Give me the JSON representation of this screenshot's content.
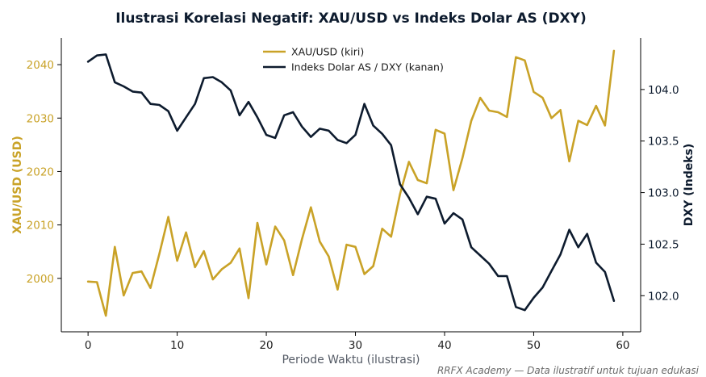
{
  "chart_data": {
    "type": "line",
    "title": "Ilustrasi Korelasi Negatif: XAU/USD vs Indeks Dolar AS (DXY)",
    "xlabel": "Periode Waktu (ilustrasi)",
    "ylabel_left": "XAU/USD (USD)",
    "ylabel_right": "DXY (Indeks)",
    "footer": "RRFX Academy — Data ilustratif untuk tujuan edukasi",
    "xlim": [
      -3,
      62
    ],
    "ylim_left": [
      1990,
      2045
    ],
    "ylim_right": [
      101.65,
      104.5
    ],
    "x_ticks": [
      0,
      10,
      20,
      30,
      40,
      50,
      60
    ],
    "y_ticks_left": [
      2000,
      2010,
      2020,
      2030,
      2040
    ],
    "y_ticks_right": [
      102.0,
      102.5,
      103.0,
      103.5,
      104.0
    ],
    "legend_position": "top-center",
    "grid": false,
    "x": [
      0,
      1,
      2,
      3,
      4,
      5,
      6,
      7,
      8,
      9,
      10,
      11,
      12,
      13,
      14,
      15,
      16,
      17,
      18,
      19,
      20,
      21,
      22,
      23,
      24,
      25,
      26,
      27,
      28,
      29,
      30,
      31,
      32,
      33,
      34,
      35,
      36,
      37,
      38,
      39,
      40,
      41,
      42,
      43,
      44,
      45,
      46,
      47,
      48,
      49,
      50,
      51,
      52,
      53,
      54,
      55,
      56,
      57,
      58,
      59
    ],
    "series": [
      {
        "name": "XAU/USD (kiri)",
        "axis": "left",
        "color": "#c9a227",
        "values": [
          1999.4,
          1999.3,
          1993.0,
          2005.9,
          1996.8,
          2001.0,
          2001.3,
          1998.2,
          2004.6,
          2011.5,
          2003.3,
          2008.6,
          2002.1,
          2005.1,
          1999.8,
          2001.7,
          2002.9,
          2005.6,
          1996.3,
          2010.4,
          2002.6,
          2009.7,
          2007.1,
          2000.6,
          2007.3,
          2013.3,
          2006.9,
          2004.1,
          1997.9,
          2006.3,
          2005.9,
          2000.8,
          2002.3,
          2009.3,
          2007.8,
          2015.8,
          2021.8,
          2018.4,
          2017.8,
          2027.8,
          2027.1,
          2016.5,
          2022.5,
          2029.5,
          2033.8,
          2031.4,
          2031.1,
          2030.2,
          2041.4,
          2040.8,
          2034.9,
          2033.8,
          2030.0,
          2031.5,
          2021.9,
          2029.5,
          2028.7,
          2032.3,
          2028.6,
          2042.6
        ]
      },
      {
        "name": "Indeks Dolar AS / DXY (kanan)",
        "axis": "right",
        "color": "#0d1b2e",
        "values": [
          104.27,
          104.33,
          104.34,
          104.07,
          104.03,
          103.98,
          103.97,
          103.86,
          103.85,
          103.79,
          103.6,
          103.73,
          103.86,
          104.11,
          104.12,
          104.07,
          103.99,
          103.75,
          103.88,
          103.73,
          103.56,
          103.53,
          103.75,
          103.78,
          103.64,
          103.54,
          103.62,
          103.6,
          103.51,
          103.48,
          103.56,
          103.86,
          103.65,
          103.57,
          103.46,
          103.08,
          102.95,
          102.79,
          102.96,
          102.94,
          102.7,
          102.8,
          102.74,
          102.47,
          102.39,
          102.31,
          102.19,
          102.19,
          101.89,
          101.86,
          101.98,
          102.08,
          102.24,
          102.4,
          102.64,
          102.47,
          102.6,
          102.32,
          102.23,
          101.95
        ]
      }
    ]
  }
}
